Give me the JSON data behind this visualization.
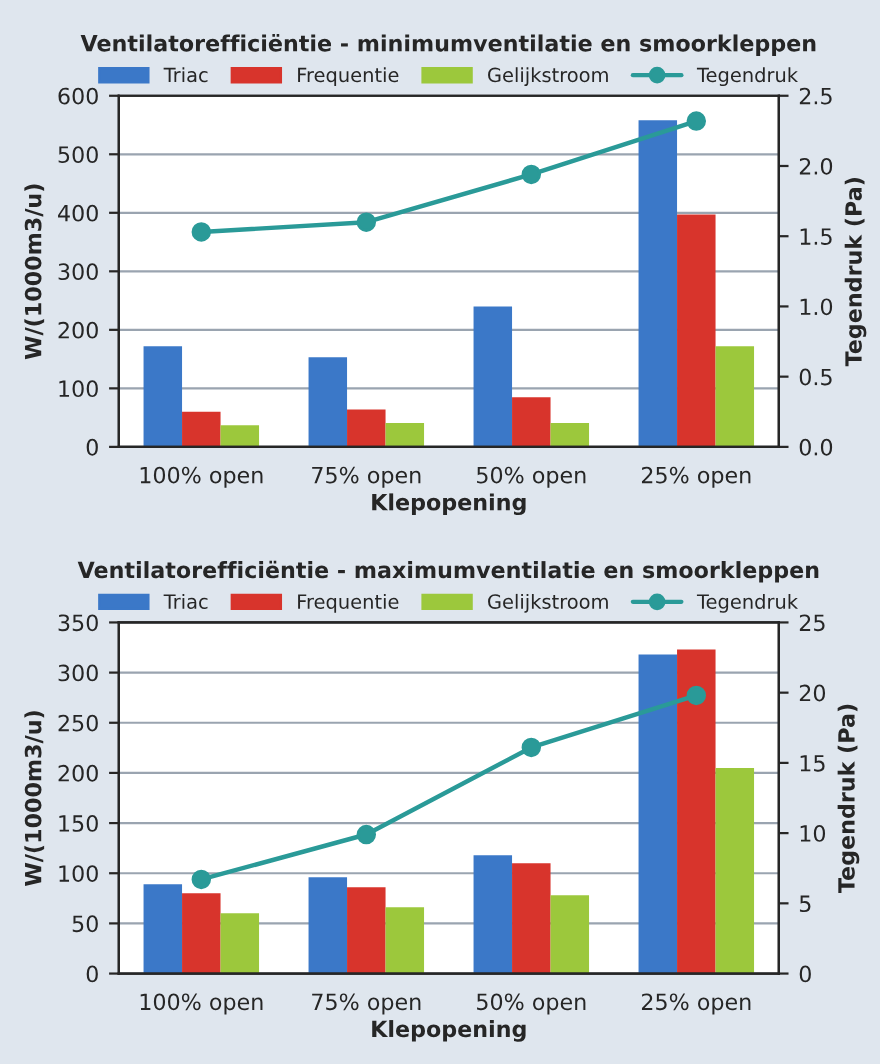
{
  "chart_data": [
    {
      "type": "bar",
      "title": "Ventilatorefficiëntie - minimumventilatie en smoorkleppen",
      "xlabel": "Klepopening",
      "ylabel": "W/(1000m3/u)",
      "y2label": "Tegendruk (Pa)",
      "categories": [
        "100% open",
        "75% open",
        "50% open",
        "25% open"
      ],
      "series": [
        {
          "name": "Triac",
          "color": "#3b78c8",
          "values": [
            172,
            153,
            240,
            558
          ]
        },
        {
          "name": "Frequentie",
          "color": "#d8342c",
          "values": [
            60,
            64,
            85,
            397
          ]
        },
        {
          "name": "Gelijkstroom",
          "color": "#9cc83c",
          "values": [
            37,
            41,
            41,
            172
          ]
        },
        {
          "name": "Tegendruk",
          "type": "line",
          "axis": "y2",
          "marker": "circle",
          "color": "#2a9a98",
          "values": [
            1.53,
            1.6,
            1.94,
            2.32
          ]
        }
      ],
      "ylim": [
        0,
        600
      ],
      "yticks": [
        0,
        100,
        200,
        300,
        400,
        500,
        600
      ],
      "y2lim": [
        0,
        2.5
      ],
      "y2ticks": [
        {
          "value": 0,
          "label": "0.0"
        },
        {
          "value": 0.5,
          "label": "0.5"
        },
        {
          "value": 1,
          "label": "1.0"
        },
        {
          "value": 1.5,
          "label": "1.5"
        },
        {
          "value": 2,
          "label": "2.0"
        },
        {
          "value": 2.5,
          "label": "2.5"
        }
      ],
      "grid": "y",
      "legend": "top"
    },
    {
      "type": "bar",
      "title": "Ventilatorefficiëntie - maximumventilatie en smoorkleppen",
      "xlabel": "Klepopening",
      "ylabel": "W/(1000m3/u)",
      "y2label": "Tegendruk (Pa)",
      "categories": [
        "100% open",
        "75% open",
        "50% open",
        "25% open"
      ],
      "series": [
        {
          "name": "Triac",
          "color": "#3b78c8",
          "values": [
            89,
            96,
            118,
            318
          ]
        },
        {
          "name": "Frequentie",
          "color": "#d8342c",
          "values": [
            80,
            86,
            110,
            323
          ]
        },
        {
          "name": "Gelijkstroom",
          "color": "#9cc83c",
          "values": [
            60,
            66,
            78,
            205
          ]
        },
        {
          "name": "Tegendruk",
          "type": "line",
          "axis": "y2",
          "marker": "circle",
          "color": "#2a9a98",
          "values": [
            6.7,
            9.9,
            16.1,
            19.8
          ]
        }
      ],
      "ylim": [
        0,
        350
      ],
      "yticks": [
        0,
        50,
        100,
        150,
        200,
        250,
        300,
        350
      ],
      "y2lim": [
        0,
        25
      ],
      "y2ticks": [
        0,
        5,
        10,
        15,
        20,
        25
      ],
      "grid": "y",
      "legend": "top"
    }
  ]
}
